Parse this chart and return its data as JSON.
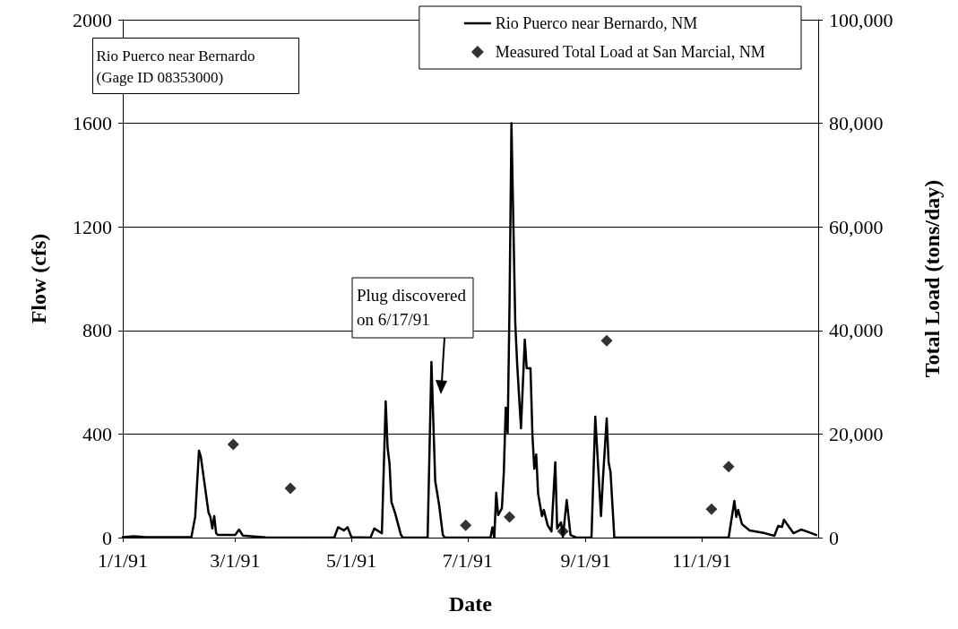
{
  "chart_data": {
    "type": "line",
    "xlabel": "Date",
    "ylabel": "Flow (cfs)",
    "y2label": "Total Load (tons/day)",
    "xlim": [
      "1991-01-01",
      "1992-01-01"
    ],
    "xticks": [
      {
        "value": "1991-01-01",
        "label": "1/1/91"
      },
      {
        "value": "1991-03-01",
        "label": "3/1/91"
      },
      {
        "value": "1991-05-01",
        "label": "5/1/91"
      },
      {
        "value": "1991-07-01",
        "label": "7/1/91"
      },
      {
        "value": "1991-09-01",
        "label": "9/1/91"
      },
      {
        "value": "1991-11-01",
        "label": "11/1/91"
      }
    ],
    "ylim": [
      0,
      2000
    ],
    "yticks": [
      0,
      400,
      800,
      1200,
      1600,
      2000
    ],
    "y2lim": [
      0,
      100000
    ],
    "y2ticks": [
      0,
      {
        "value": 20000,
        "label": "20,000"
      },
      {
        "value": 40000,
        "label": "40,000"
      },
      {
        "value": 60000,
        "label": "60,000"
      },
      {
        "value": 80000,
        "label": "80,000"
      },
      {
        "value": 100000,
        "label": "100,000"
      }
    ],
    "grid": "y",
    "legend": "top right",
    "annotations": [
      "Rio Puerco near Bernardo\n(Gage ID 08353000)",
      "Plug discovered\non 6/17/91"
    ],
    "series": [
      {
        "name": "Rio Puerco near Bernardo, NM",
        "color": "#000000",
        "line_style": "solid",
        "x": [
          "1991-01-01",
          "1991-01-07",
          "1991-01-13",
          "1991-02-06",
          "1991-02-08",
          "1991-02-10",
          "1991-02-11",
          "1991-02-15",
          "1991-02-16",
          "1991-02-17",
          "1991-02-18",
          "1991-02-19",
          "1991-02-20",
          "1991-03-01",
          "1991-03-03",
          "1991-03-05",
          "1991-03-17",
          "1991-04-22",
          "1991-04-24",
          "1991-04-27",
          "1991-04-29",
          "1991-05-01",
          "1991-05-11",
          "1991-05-13",
          "1991-05-17",
          "1991-05-19",
          "1991-05-20",
          "1991-05-21",
          "1991-05-22",
          "1991-05-24",
          "1991-05-27",
          "1991-05-28",
          "1991-06-10",
          "1991-06-12",
          "1991-06-14",
          "1991-06-16",
          "1991-06-18",
          "1991-06-19",
          "1991-07-13",
          "1991-07-14",
          "1991-07-15",
          "1991-07-16",
          "1991-07-17",
          "1991-07-19",
          "1991-07-20",
          "1991-07-21",
          "1991-07-22",
          "1991-07-23",
          "1991-07-24",
          "1991-07-26",
          "1991-07-27",
          "1991-07-29",
          "1991-07-31",
          "1991-08-01",
          "1991-08-03",
          "1991-08-04",
          "1991-08-05",
          "1991-08-06",
          "1991-08-07",
          "1991-08-09",
          "1991-08-10",
          "1991-08-12",
          "1991-08-14",
          "1991-08-16",
          "1991-08-17",
          "1991-08-19",
          "1991-08-20",
          "1991-08-22",
          "1991-08-24",
          "1991-08-27",
          "1991-09-04",
          "1991-09-06",
          "1991-09-09",
          "1991-09-10",
          "1991-09-12",
          "1991-09-13",
          "1991-09-14",
          "1991-09-16",
          "1991-11-15",
          "1991-11-18",
          "1991-11-19",
          "1991-11-20",
          "1991-11-22",
          "1991-11-26",
          "1991-12-04",
          "1991-12-09",
          "1991-12-11",
          "1991-12-13",
          "1991-12-14",
          "1991-12-19",
          "1991-12-23",
          "1991-12-27",
          "1991-12-31"
        ],
        "values": [
          2,
          5,
          2,
          2,
          80,
          336,
          311,
          97,
          80,
          35,
          83,
          17,
          10,
          10,
          31,
          8,
          1,
          0,
          40,
          28,
          40,
          2,
          0,
          35,
          17,
          526,
          346,
          287,
          138,
          93,
          10,
          0,
          0,
          678,
          218,
          128,
          10,
          0,
          0,
          40,
          0,
          173,
          87,
          114,
          253,
          502,
          405,
          903,
          1600,
          830,
          671,
          422,
          765,
          654,
          654,
          398,
          266,
          321,
          170,
          83,
          107,
          48,
          24,
          291,
          35,
          59,
          3,
          145,
          10,
          0,
          0,
          467,
          83,
          225,
          460,
          291,
          253,
          0,
          0,
          142,
          80,
          107,
          52,
          28,
          17,
          7,
          45,
          41,
          69,
          17,
          31,
          21,
          10
        ]
      },
      {
        "name": "Measured Total Load at San Marcial, NM",
        "type": "scatter",
        "axis": "y2",
        "color": "#000000",
        "marker": "diamond",
        "x": [
          "1991-02-28",
          "1991-03-30",
          "1991-06-30",
          "1991-07-23",
          "1991-08-20",
          "1991-09-12",
          "1991-11-06",
          "1991-11-15"
        ],
        "values": [
          18000,
          9500,
          2400,
          4000,
          1200,
          38000,
          5500,
          13700
        ]
      }
    ]
  }
}
